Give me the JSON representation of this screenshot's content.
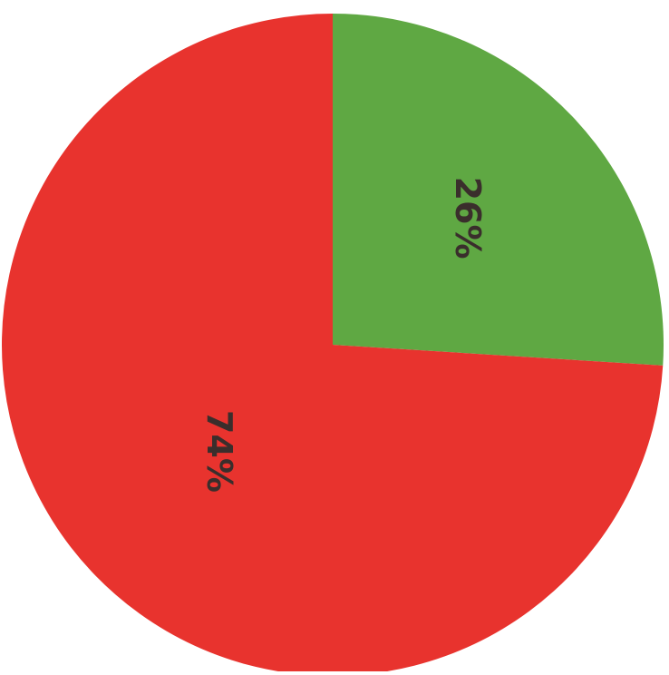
{
  "chart_data": {
    "type": "pie",
    "title": "",
    "slices": [
      {
        "label": "26%",
        "value": 26,
        "color": "#5fa843"
      },
      {
        "label": "74%",
        "value": 74,
        "color": "#e8332e"
      }
    ],
    "legend": "none"
  }
}
